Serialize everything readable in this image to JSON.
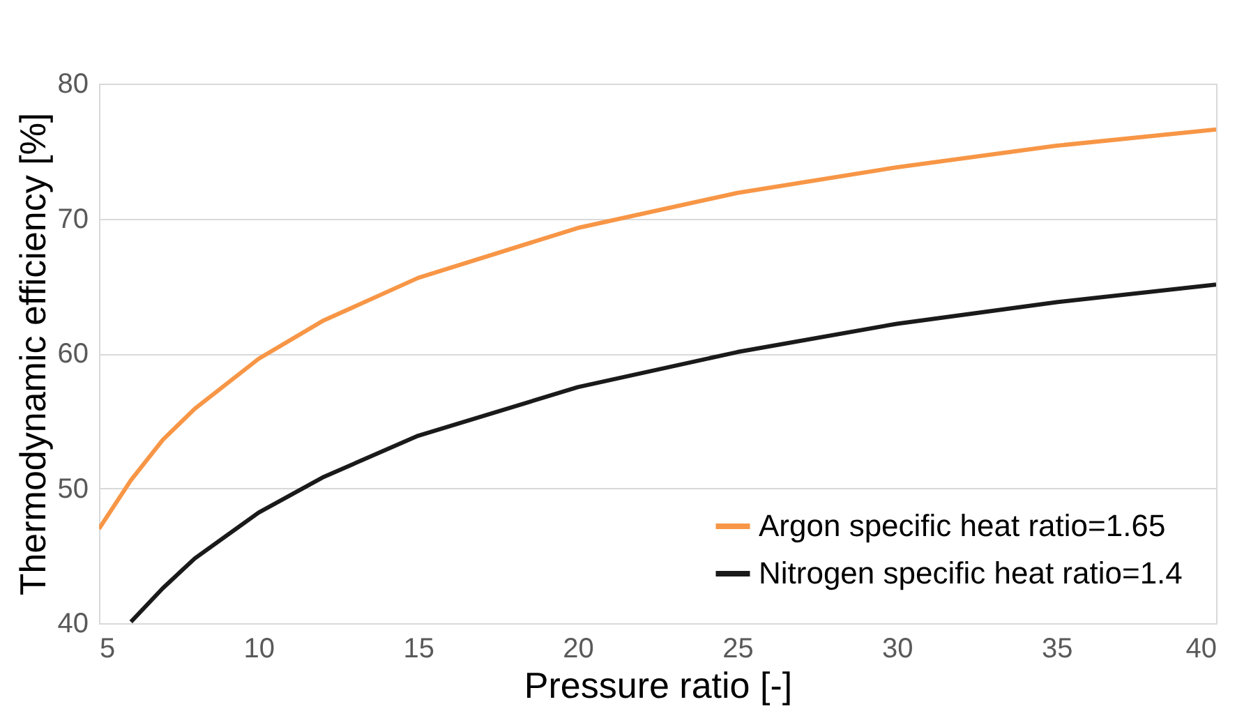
{
  "chart_data": {
    "type": "line",
    "xlabel": "Pressure ratio [-]",
    "ylabel": "Thermodynamic efficiency [%]",
    "xlim": [
      5,
      40
    ],
    "xticks": [
      5,
      10,
      15,
      20,
      25,
      30,
      35,
      40
    ],
    "ylim": [
      40,
      80
    ],
    "yticks": [
      40,
      50,
      60,
      70,
      80
    ],
    "grid": "y",
    "legend": "bottom right",
    "marker": "none",
    "line_style": "solid",
    "series": [
      {
        "name": "Argon specific heat ratio=1.65",
        "color": "#f79646",
        "x": [
          5,
          6,
          7,
          8,
          10,
          12,
          15,
          20,
          25,
          30,
          35,
          40
        ],
        "values": [
          47.0,
          50.6,
          53.6,
          55.9,
          59.6,
          62.4,
          65.6,
          69.3,
          71.9,
          73.8,
          75.4,
          76.6
        ]
      },
      {
        "name": "Nitrogen specific heat ratio=1.4",
        "color": "#1a1a1a",
        "x": [
          6,
          7,
          8,
          10,
          12,
          15,
          20,
          25,
          30,
          35,
          40
        ],
        "values": [
          40.1,
          42.6,
          44.8,
          48.2,
          50.8,
          53.9,
          57.5,
          60.1,
          62.2,
          63.8,
          65.1
        ]
      }
    ]
  }
}
